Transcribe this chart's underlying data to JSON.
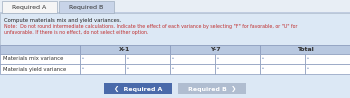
{
  "tab_required_a": "Required A",
  "tab_required_b": "Required B",
  "note_line1": "Compute materials mix and yield variances.",
  "note_line2": "Note:  Do not round intermediate calculations. Indicate the effect of each variance by selecting \"F\" for favorable, or \"U\" for",
  "note_line3": "unfavorable. If there is no effect, do not select either option.",
  "col_headers": [
    "X-1",
    "Y-7",
    "Total"
  ],
  "row_labels": [
    "Materials mix variance",
    "Materials yield variance"
  ],
  "tab_active_bg": "#f5f5f5",
  "tab_inactive_bg": "#c8d4e8",
  "tab_border": "#a0aec0",
  "header_bg": "#b8c8e0",
  "note_bg": "#dce8f5",
  "table_border": "#8899bb",
  "cell_bg": "#ffffff",
  "btn_active_bg": "#4a6aaa",
  "btn_inactive_bg": "#b0bdd0",
  "btn_text_color": "#ffffff",
  "note_text_color": "#c03030",
  "label_text_color": "#303030",
  "header_text_color": "#303030",
  "fig_bg": "#dce8f5",
  "outer_bg": "#e8eef8"
}
